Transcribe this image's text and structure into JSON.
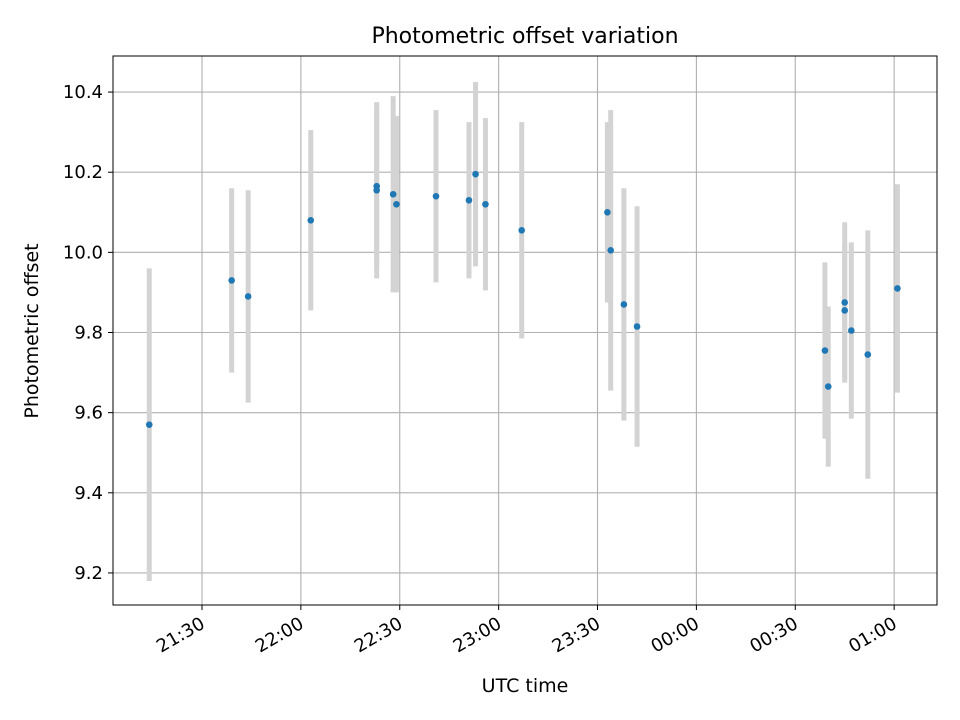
{
  "chart_data": {
    "type": "scatter",
    "title": "Photometric offset variation",
    "xlabel": "UTC time",
    "ylabel": "Photometric offset",
    "grid": true,
    "xlim": [
      "21:03",
      "01:13"
    ],
    "ylim": [
      9.12,
      10.49
    ],
    "x_ticks": [
      {
        "t": "21:30",
        "label": "21:30"
      },
      {
        "t": "22:00",
        "label": "22:00"
      },
      {
        "t": "22:30",
        "label": "22:30"
      },
      {
        "t": "23:00",
        "label": "23:00"
      },
      {
        "t": "23:30",
        "label": "23:30"
      },
      {
        "t": "00:00",
        "label": "00:00"
      },
      {
        "t": "00:30",
        "label": "00:30"
      },
      {
        "t": "01:00",
        "label": "01:00"
      }
    ],
    "y_ticks": [
      9.2,
      9.4,
      9.6,
      9.8,
      10.0,
      10.2,
      10.4
    ],
    "y_tick_labels": [
      "9.2",
      "9.4",
      "9.6",
      "9.8",
      "10.0",
      "10.2",
      "10.4"
    ],
    "series": [
      {
        "marker_color": "#1f77b4",
        "errorbar_color": "#d3d3d3",
        "points": [
          {
            "t": "21:14",
            "y": 9.57,
            "err": 0.39
          },
          {
            "t": "21:39",
            "y": 9.93,
            "err": 0.23
          },
          {
            "t": "21:44",
            "y": 9.89,
            "err": 0.265
          },
          {
            "t": "22:03",
            "y": 10.08,
            "err": 0.225
          },
          {
            "t": "22:23",
            "y": 10.165,
            "err": 0.2
          },
          {
            "t": "22:23",
            "y": 10.155,
            "err": 0.22
          },
          {
            "t": "22:28",
            "y": 10.145,
            "err": 0.245
          },
          {
            "t": "22:29",
            "y": 10.12,
            "err": 0.22
          },
          {
            "t": "22:41",
            "y": 10.14,
            "err": 0.215
          },
          {
            "t": "22:51",
            "y": 10.13,
            "err": 0.195
          },
          {
            "t": "22:53",
            "y": 10.195,
            "err": 0.23
          },
          {
            "t": "22:56",
            "y": 10.12,
            "err": 0.215
          },
          {
            "t": "23:07",
            "y": 10.055,
            "err": 0.27
          },
          {
            "t": "23:33",
            "y": 10.1,
            "err": 0.225
          },
          {
            "t": "23:34",
            "y": 10.005,
            "err": 0.35
          },
          {
            "t": "23:38",
            "y": 9.87,
            "err": 0.29
          },
          {
            "t": "23:42",
            "y": 9.815,
            "err": 0.3
          },
          {
            "t": "00:39",
            "y": 9.755,
            "err": 0.22
          },
          {
            "t": "00:40",
            "y": 9.665,
            "err": 0.2
          },
          {
            "t": "00:45",
            "y": 9.875,
            "err": 0.2
          },
          {
            "t": "00:45",
            "y": 9.855,
            "err": 0.17
          },
          {
            "t": "00:47",
            "y": 9.805,
            "err": 0.22
          },
          {
            "t": "00:52",
            "y": 9.745,
            "err": 0.31
          },
          {
            "t": "01:01",
            "y": 9.91,
            "err": 0.26
          }
        ]
      }
    ]
  }
}
